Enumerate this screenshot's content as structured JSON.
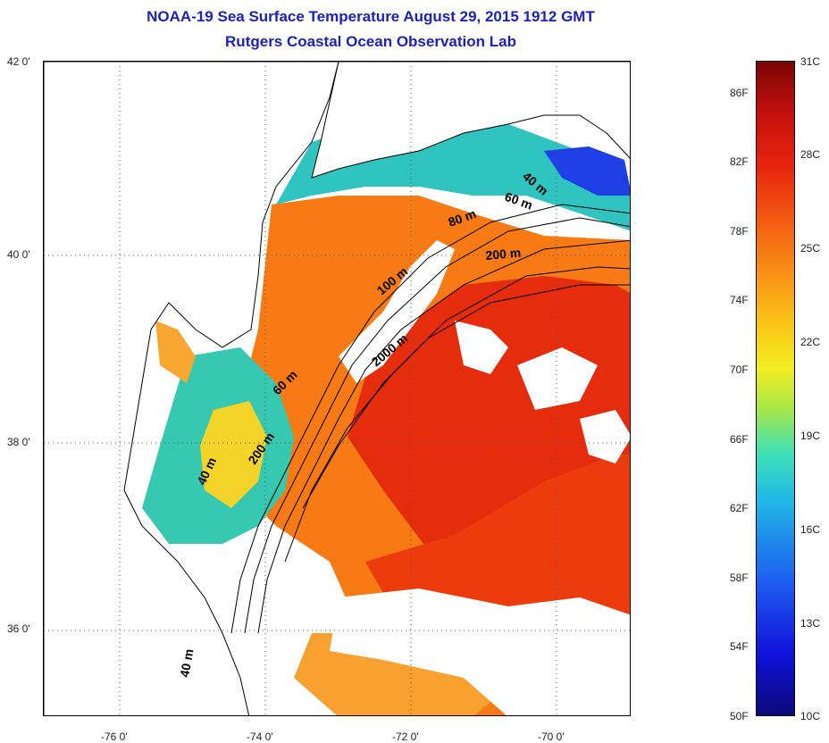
{
  "title": {
    "line1": "NOAA-19 Sea Surface Temperature August 29, 2015 1912 GMT",
    "line2": "Rutgers Coastal Ocean Observation Lab"
  },
  "map": {
    "lat_labels": [
      "42 0'",
      "40 0'",
      "38 0'",
      "36 0'"
    ],
    "lon_labels": [
      "-76 0'",
      "-74 0'",
      "-72 0'",
      "-70 0'"
    ],
    "lat_range": [
      35,
      42
    ],
    "lon_range": [
      -77,
      -69
    ],
    "contour_labels": [
      "40 m",
      "60 m",
      "80 m",
      "200 m",
      "100 m",
      "2000 m",
      "60 m",
      "200 m",
      "40 m",
      "40 m"
    ]
  },
  "colorbar": {
    "fahrenheit": [
      "86F",
      "82F",
      "78F",
      "74F",
      "70F",
      "66F",
      "62F",
      "58F",
      "54F",
      "50F"
    ],
    "celsius": [
      "31C",
      "28C",
      "25C",
      "22C",
      "19C",
      "16C",
      "13C",
      "10C"
    ],
    "colors": {
      "min": "#0a0a78",
      "cold": "#1d5af0",
      "cool": "#21b8e6",
      "mid": "#f2ee20",
      "warm": "#f99416",
      "hot": "#e8240e",
      "max": "#7a0604"
    }
  }
}
